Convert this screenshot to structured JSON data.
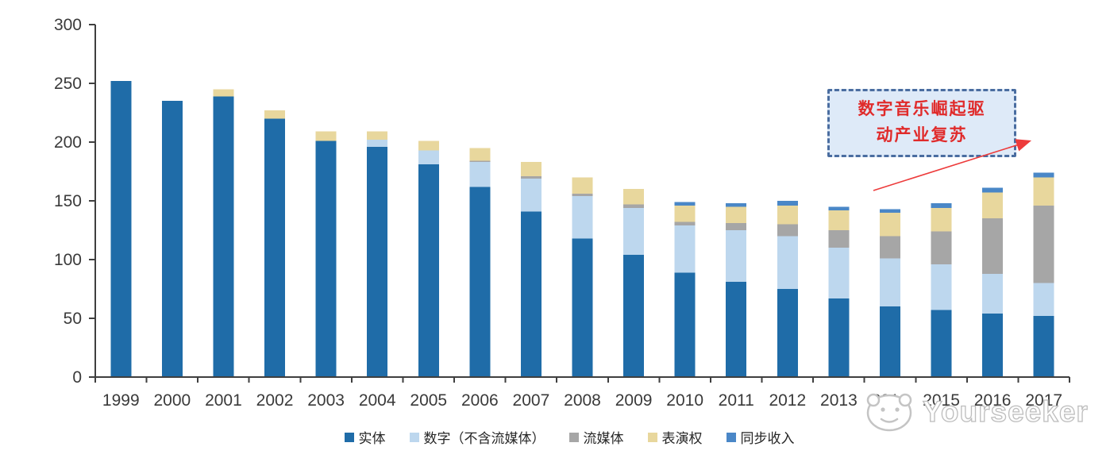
{
  "chart_data": {
    "type": "bar",
    "stacked": true,
    "title": "",
    "xlabel": "",
    "ylabel": "",
    "categories": [
      "1999",
      "2000",
      "2001",
      "2002",
      "2003",
      "2004",
      "2005",
      "2006",
      "2007",
      "2008",
      "2009",
      "2010",
      "2011",
      "2012",
      "2013",
      "2014",
      "2015",
      "2016",
      "2017"
    ],
    "series": [
      {
        "name": "实体",
        "color": "#1F6CA8",
        "values": [
          252,
          235,
          239,
          220,
          201,
          196,
          181,
          162,
          141,
          118,
          104,
          89,
          81,
          75,
          67,
          60,
          57,
          54,
          52
        ]
      },
      {
        "name": "数字（不含流媒体）",
        "color": "#BDD7EE",
        "values": [
          0,
          0,
          0,
          0,
          0,
          6,
          12,
          21,
          28,
          36,
          40,
          40,
          44,
          45,
          43,
          41,
          39,
          34,
          28
        ]
      },
      {
        "name": "流媒体",
        "color": "#A6A6A6",
        "values": [
          0,
          0,
          0,
          0,
          0,
          0,
          0,
          1,
          2,
          2,
          3,
          3,
          6,
          10,
          15,
          19,
          28,
          47,
          66
        ]
      },
      {
        "name": "表演权",
        "color": "#E8D79D",
        "values": [
          0,
          0,
          6,
          7,
          8,
          7,
          8,
          11,
          12,
          14,
          13,
          14,
          14,
          16,
          17,
          20,
          20,
          22,
          24
        ]
      },
      {
        "name": "同步收入",
        "color": "#4A87C7",
        "values": [
          0,
          0,
          0,
          0,
          0,
          0,
          0,
          0,
          0,
          0,
          0,
          3,
          3,
          4,
          3,
          3,
          4,
          4,
          4
        ]
      }
    ],
    "ylim": [
      0,
      300
    ],
    "ytick_step": 50,
    "yticks": [
      0,
      50,
      100,
      150,
      200,
      250,
      300
    ],
    "grid": false,
    "legend_position": "bottom"
  },
  "annotation": {
    "line1": "数字音乐崛起驱",
    "line2": "动产业复苏",
    "text_color": "#E02B2B",
    "box_fill": "#DEEAF8",
    "box_border_color": "#4A6DA0",
    "arrow_color": "#ED3B3B"
  },
  "watermark": {
    "text": "Yourseeker"
  },
  "axis": {
    "line_color": "#3F3F3F",
    "label_color": "#3A3A3A"
  }
}
